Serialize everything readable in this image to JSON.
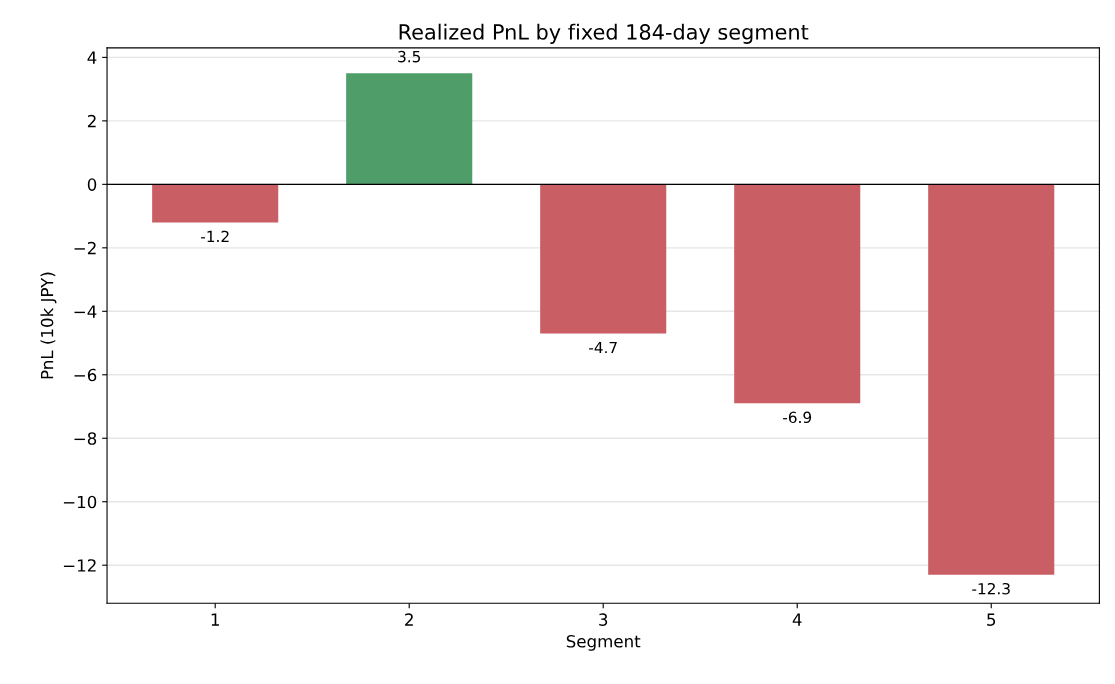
{
  "chart_data": {
    "type": "bar",
    "title": "Realized PnL by fixed 184-day segment",
    "xlabel": "Segment",
    "ylabel": "PnL (10k JPY)",
    "categories": [
      "1",
      "2",
      "3",
      "4",
      "5"
    ],
    "values": [
      -1.2,
      3.5,
      -4.7,
      -6.9,
      -12.3
    ],
    "colors": [
      "#c95f64",
      "#4f9e69",
      "#c95f64",
      "#c95f64",
      "#c95f64"
    ],
    "ylim": [
      -13.2,
      4.3
    ],
    "yticks": [
      -12,
      -10,
      -8,
      -6,
      -4,
      -2,
      0,
      2,
      4
    ],
    "grid": "y",
    "data_labels": true,
    "ref_lines": [
      {
        "axis": "y",
        "value": 0,
        "color": "#000000"
      }
    ]
  }
}
